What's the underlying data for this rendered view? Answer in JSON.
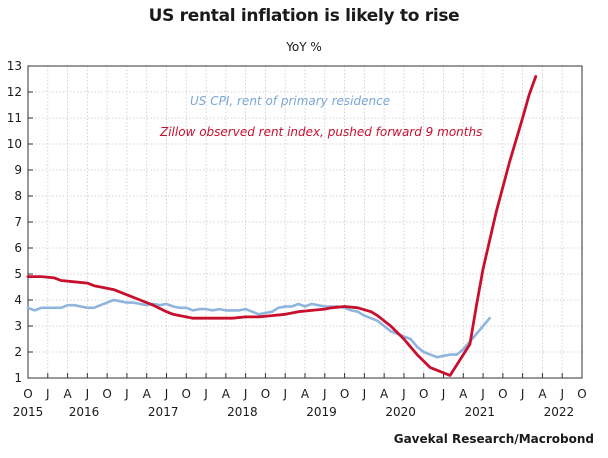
{
  "chart_data": {
    "type": "line",
    "title": "US rental inflation is likely to rise",
    "subtitle": "YoY %",
    "source": "Gavekal Research/Macrobond",
    "ylim": [
      1,
      13
    ],
    "yticks": [
      1,
      2,
      3,
      4,
      5,
      6,
      7,
      8,
      9,
      10,
      11,
      12,
      13
    ],
    "xlim": [
      "2015-10",
      "2022-10"
    ],
    "x_tick_labels": [
      "O",
      "J",
      "A",
      "J",
      "O",
      "J",
      "A",
      "J",
      "O",
      "J",
      "A",
      "J",
      "O",
      "J",
      "A",
      "J",
      "O",
      "J",
      "A",
      "J",
      "O",
      "J",
      "A",
      "J",
      "O",
      "J",
      "A",
      "J",
      "O"
    ],
    "year_labels": [
      "2015",
      "2016",
      "2017",
      "2018",
      "2019",
      "2020",
      "2021",
      "2022"
    ],
    "grid": true,
    "series": [
      {
        "name": "US CPI, rent of primary residence",
        "color": "#8fb4dd",
        "points": [
          [
            "2015-10",
            3.7
          ],
          [
            "2015-11",
            3.6
          ],
          [
            "2015-12",
            3.7
          ],
          [
            "2016-01",
            3.7
          ],
          [
            "2016-02",
            3.7
          ],
          [
            "2016-03",
            3.7
          ],
          [
            "2016-04",
            3.8
          ],
          [
            "2016-05",
            3.8
          ],
          [
            "2016-06",
            3.75
          ],
          [
            "2016-07",
            3.7
          ],
          [
            "2016-08",
            3.7
          ],
          [
            "2016-09",
            3.8
          ],
          [
            "2016-10",
            3.9
          ],
          [
            "2016-11",
            4.0
          ],
          [
            "2016-12",
            3.95
          ],
          [
            "2017-01",
            3.9
          ],
          [
            "2017-02",
            3.9
          ],
          [
            "2017-03",
            3.85
          ],
          [
            "2017-04",
            3.8
          ],
          [
            "2017-05",
            3.85
          ],
          [
            "2017-06",
            3.8
          ],
          [
            "2017-07",
            3.85
          ],
          [
            "2017-08",
            3.75
          ],
          [
            "2017-09",
            3.7
          ],
          [
            "2017-10",
            3.7
          ],
          [
            "2017-11",
            3.6
          ],
          [
            "2017-12",
            3.65
          ],
          [
            "2018-01",
            3.65
          ],
          [
            "2018-02",
            3.6
          ],
          [
            "2018-03",
            3.65
          ],
          [
            "2018-04",
            3.6
          ],
          [
            "2018-05",
            3.6
          ],
          [
            "2018-06",
            3.6
          ],
          [
            "2018-07",
            3.65
          ],
          [
            "2018-08",
            3.55
          ],
          [
            "2018-09",
            3.45
          ],
          [
            "2018-10",
            3.5
          ],
          [
            "2018-11",
            3.55
          ],
          [
            "2018-12",
            3.7
          ],
          [
            "2019-01",
            3.75
          ],
          [
            "2019-02",
            3.75
          ],
          [
            "2019-03",
            3.85
          ],
          [
            "2019-04",
            3.75
          ],
          [
            "2019-05",
            3.85
          ],
          [
            "2019-06",
            3.8
          ],
          [
            "2019-07",
            3.75
          ],
          [
            "2019-08",
            3.75
          ],
          [
            "2019-09",
            3.75
          ],
          [
            "2019-10",
            3.7
          ],
          [
            "2019-11",
            3.6
          ],
          [
            "2019-12",
            3.55
          ],
          [
            "2020-01",
            3.4
          ],
          [
            "2020-02",
            3.3
          ],
          [
            "2020-03",
            3.2
          ],
          [
            "2020-04",
            3.0
          ],
          [
            "2020-05",
            2.8
          ],
          [
            "2020-06",
            2.7
          ],
          [
            "2020-07",
            2.6
          ],
          [
            "2020-08",
            2.5
          ],
          [
            "2020-09",
            2.2
          ],
          [
            "2020-10",
            2.0
          ],
          [
            "2020-11",
            1.9
          ],
          [
            "2020-12",
            1.8
          ],
          [
            "2021-01",
            1.85
          ],
          [
            "2021-02",
            1.9
          ],
          [
            "2021-03",
            1.9
          ],
          [
            "2021-04",
            2.1
          ],
          [
            "2021-05",
            2.4
          ],
          [
            "2021-06",
            2.7
          ],
          [
            "2021-07",
            3.0
          ],
          [
            "2021-08",
            3.3
          ]
        ]
      },
      {
        "name": "Zillow observed rent index, pushed forward 9 months",
        "color": "#c8102e",
        "points": [
          [
            "2015-10",
            4.9
          ],
          [
            "2015-12",
            4.9
          ],
          [
            "2016-02",
            4.85
          ],
          [
            "2016-03",
            4.75
          ],
          [
            "2016-05",
            4.7
          ],
          [
            "2016-07",
            4.65
          ],
          [
            "2016-08",
            4.55
          ],
          [
            "2016-09",
            4.5
          ],
          [
            "2016-11",
            4.4
          ],
          [
            "2016-12",
            4.3
          ],
          [
            "2017-01",
            4.2
          ],
          [
            "2017-03",
            4.0
          ],
          [
            "2017-05",
            3.8
          ],
          [
            "2017-07",
            3.55
          ],
          [
            "2017-08",
            3.45
          ],
          [
            "2017-09",
            3.4
          ],
          [
            "2017-10",
            3.35
          ],
          [
            "2017-11",
            3.3
          ],
          [
            "2018-01",
            3.3
          ],
          [
            "2018-03",
            3.3
          ],
          [
            "2018-05",
            3.3
          ],
          [
            "2018-07",
            3.35
          ],
          [
            "2018-09",
            3.35
          ],
          [
            "2018-11",
            3.4
          ],
          [
            "2019-01",
            3.45
          ],
          [
            "2019-03",
            3.55
          ],
          [
            "2019-05",
            3.6
          ],
          [
            "2019-07",
            3.65
          ],
          [
            "2019-08",
            3.7
          ],
          [
            "2019-10",
            3.75
          ],
          [
            "2019-12",
            3.7
          ],
          [
            "2020-02",
            3.55
          ],
          [
            "2020-03",
            3.4
          ],
          [
            "2020-05",
            3.0
          ],
          [
            "2020-07",
            2.5
          ],
          [
            "2020-08",
            2.2
          ],
          [
            "2020-09",
            1.9
          ],
          [
            "2020-10",
            1.65
          ],
          [
            "2020-11",
            1.4
          ],
          [
            "2020-12",
            1.3
          ],
          [
            "2021-01",
            1.2
          ],
          [
            "2021-02",
            1.1
          ],
          [
            "2021-03",
            1.5
          ],
          [
            "2021-05",
            2.3
          ],
          [
            "2021-06",
            3.8
          ],
          [
            "2021-07",
            5.2
          ],
          [
            "2021-09",
            7.4
          ],
          [
            "2021-11",
            9.3
          ],
          [
            "2022-01",
            11.0
          ],
          [
            "2022-02",
            11.9
          ],
          [
            "2022-03",
            12.6
          ]
        ]
      }
    ]
  }
}
